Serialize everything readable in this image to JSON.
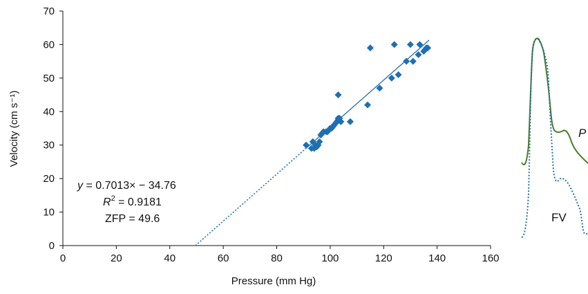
{
  "chart_data": [
    {
      "type": "scatter",
      "xlabel": "Pressure (mm Hg)",
      "ylabel": "Velocity (cm s⁻¹)",
      "xlim": [
        0,
        160
      ],
      "ylim": [
        0,
        70
      ],
      "xticks": [
        0,
        20,
        40,
        60,
        80,
        100,
        120,
        140,
        160
      ],
      "yticks": [
        0,
        10,
        20,
        30,
        40,
        50,
        60,
        70
      ],
      "grid": false,
      "series": [
        {
          "color": "#1f6fb2",
          "marker": "diamond",
          "points": [
            [
              91,
              30
            ],
            [
              93,
              29
            ],
            [
              93.5,
              31
            ],
            [
              94,
              29
            ],
            [
              94.5,
              30
            ],
            [
              95,
              29.5
            ],
            [
              95.5,
              30
            ],
            [
              96,
              31
            ],
            [
              96.5,
              33
            ],
            [
              97,
              33.5
            ],
            [
              97.5,
              34
            ],
            [
              98.5,
              34
            ],
            [
              99,
              34
            ],
            [
              100,
              35
            ],
            [
              100.5,
              35
            ],
            [
              101,
              35.5
            ],
            [
              101.5,
              36
            ],
            [
              102,
              36.5
            ],
            [
              102.5,
              37
            ],
            [
              103,
              37.5
            ],
            [
              103,
              38
            ],
            [
              103.5,
              38
            ],
            [
              104,
              37
            ],
            [
              103,
              45
            ],
            [
              107.5,
              37
            ],
            [
              114,
              42
            ],
            [
              115,
              59
            ],
            [
              118.5,
              47
            ],
            [
              123,
              50
            ],
            [
              124,
              60
            ],
            [
              125.5,
              51
            ],
            [
              128.5,
              55
            ],
            [
              130,
              60
            ],
            [
              131,
              55
            ],
            [
              133,
              57
            ],
            [
              133.5,
              60
            ],
            [
              135,
              58
            ],
            [
              135.5,
              58.5
            ],
            [
              136,
              59
            ],
            [
              136.5,
              59
            ]
          ]
        }
      ],
      "trendline": {
        "slope": 0.7013,
        "intercept": -34.76,
        "fit_x": [
          91,
          137
        ],
        "extrapolate_to": 49.6,
        "color": "#1f6fb2"
      },
      "annotations": {
        "line1_var": "y",
        "line1_rest": " = 0.7013× − 34.76",
        "line2_var": "R",
        "line2_sup": "2",
        "line2_rest": " = 0.9181",
        "line3": "ZFP = 49.6"
      }
    },
    {
      "type": "line",
      "series": [
        {
          "name": "P",
          "color": "#4a7a2a",
          "style": "solid"
        },
        {
          "name": "FV",
          "color": "#1f6fb2",
          "style": "dotted"
        }
      ]
    }
  ]
}
